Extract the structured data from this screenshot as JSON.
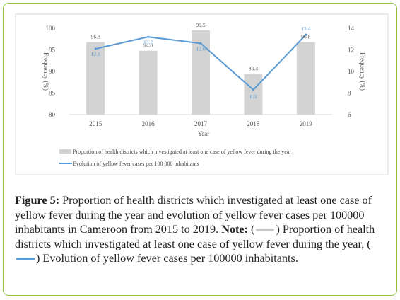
{
  "chart_data": {
    "type": "bar+line",
    "categories": [
      "2015",
      "2016",
      "2017",
      "2018",
      "2019"
    ],
    "series": [
      {
        "name": "Proportion of health districts which investigated at least one case of yellow fever during the year",
        "type": "bar",
        "axis": "left",
        "values": [
          96.8,
          94.8,
          99.5,
          89.4,
          96.8
        ],
        "labels": [
          "96.8",
          "94.8",
          "99.5",
          "89.4",
          "96.8"
        ],
        "color": "#d3d3d3"
      },
      {
        "name": "Evolution of yellow fever cases  per 100 000 inhabitants",
        "type": "line",
        "axis": "right",
        "values": [
          12.1,
          13.2,
          12.6,
          8.3,
          13.4
        ],
        "labels": [
          "12.1",
          "13.2",
          "12.6",
          "8.3",
          "13.4"
        ],
        "color": "#5b9bd5"
      }
    ],
    "xlabel": "Year",
    "ylabel_left": "Frequency (%)",
    "ylabel_right": "Frequency (%)",
    "ylim_left": [
      80,
      100
    ],
    "yticks_left": [
      "80",
      "85",
      "90",
      "95",
      "100"
    ],
    "ylim_right": [
      6,
      14
    ],
    "yticks_right": [
      "6",
      "8",
      "10",
      "12",
      "14"
    ],
    "grid": false,
    "legend_position": "bottom"
  },
  "caption": {
    "figure_label": "Figure 5:",
    "text": " Proportion of health districts which investigated at least one case of yellow fever during the year and evolution of yellow fever cases per 100000 inhabitants in Cameroon from 2015 to 2019. ",
    "note_label": "Note:",
    "note_open": " (",
    "note_part1": ") Proportion of health districts which investigated at least one case of yellow fever during the year, (",
    "note_part2": ") Evolution of yellow fever cases per 100000 inhabitants."
  },
  "colors": {
    "border": "#8cc63f",
    "bar": "#d3d3d3",
    "line": "#5b9bd5"
  }
}
